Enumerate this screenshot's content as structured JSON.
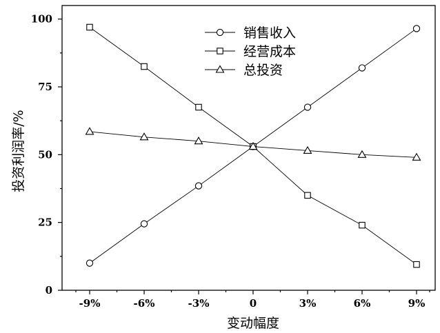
{
  "chart_data": {
    "type": "line",
    "title": "",
    "xlabel": "变动幅度",
    "ylabel": "投资利润率/%",
    "categories": [
      "-9%",
      "-6%",
      "-3%",
      "0",
      "3%",
      "6%",
      "9%"
    ],
    "ylim": [
      0,
      105
    ],
    "yticks": [
      "0",
      "25",
      "50",
      "75",
      "100"
    ],
    "ytick_values": [
      0,
      25,
      50,
      75,
      100
    ],
    "grid": false,
    "legend_position": "top-center",
    "series": [
      {
        "name": "销售收入",
        "marker": "circle",
        "values": [
          10,
          24.5,
          38.5,
          53,
          67.5,
          82,
          96.5
        ]
      },
      {
        "name": "经营成本",
        "marker": "square",
        "values": [
          97,
          82.5,
          67.5,
          53,
          35,
          24,
          9.5
        ]
      },
      {
        "name": "总投资",
        "marker": "triangle",
        "values": [
          58.5,
          56.5,
          55,
          53,
          51.5,
          50,
          49
        ]
      }
    ]
  }
}
